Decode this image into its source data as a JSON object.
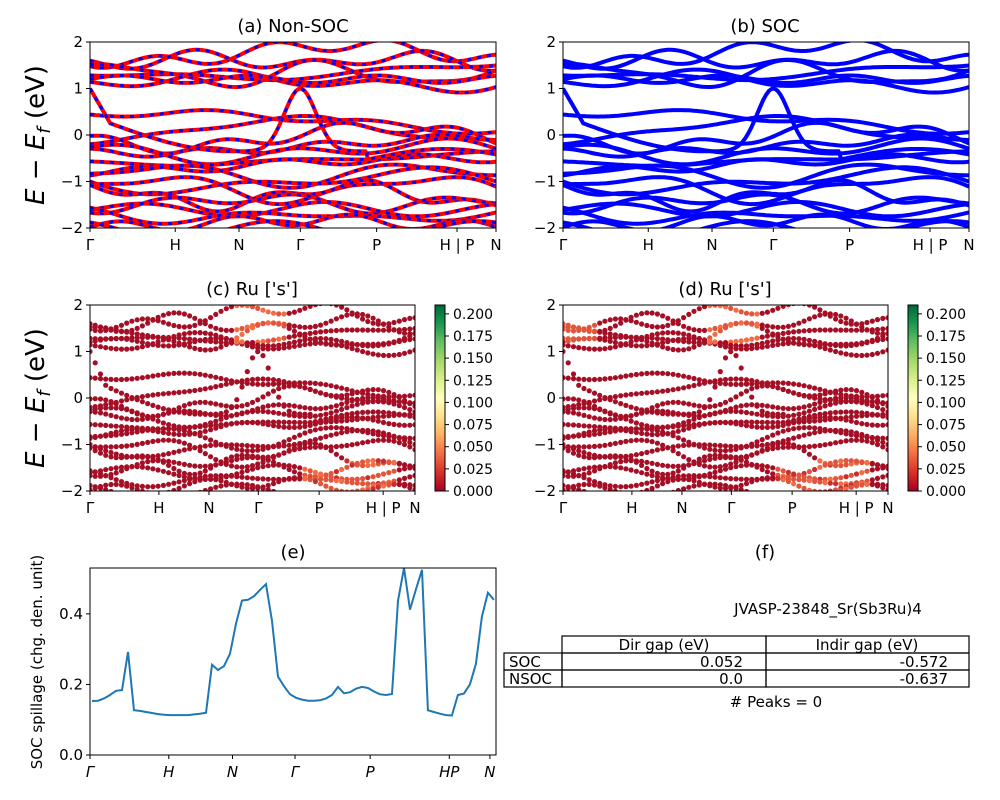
{
  "chart_data": [
    {
      "id": "a",
      "type": "line",
      "title": "(a) Non-SOC",
      "ylabel": "E − E_f (eV)",
      "ylim": [
        -2,
        2
      ],
      "yticks": [
        "2",
        "1",
        "0",
        "−1",
        "−2"
      ],
      "xticks": [
        "Γ",
        "H",
        "N",
        "Γ",
        "P",
        "H | P",
        "N"
      ],
      "series": [
        {
          "color": "#ff0000",
          "style": "solid"
        },
        {
          "color": "#0000ff",
          "style": "dashed"
        }
      ]
    },
    {
      "id": "b",
      "type": "line",
      "title": "(b) SOC",
      "ylim": [
        -2,
        2
      ],
      "yticks": [
        "2",
        "1",
        "0",
        "−1",
        "−2"
      ],
      "xticks": [
        "Γ",
        "H",
        "N",
        "Γ",
        "P",
        "H | P",
        "N"
      ],
      "series": [
        {
          "color": "#0000ff",
          "style": "solid"
        }
      ]
    },
    {
      "id": "c",
      "type": "scatter",
      "title": "(c)  Ru ['s']",
      "ylabel": "E − E_f (eV)",
      "ylim": [
        -2,
        2
      ],
      "yticks": [
        "2",
        "1",
        "0",
        "−1",
        "−2"
      ],
      "xticks": [
        "Γ",
        "H",
        "N",
        "Γ",
        "P",
        "H | P",
        "N"
      ],
      "colorbar": {
        "colormap": "RdYlGn",
        "ticks": [
          "0.200",
          "0.175",
          "0.150",
          "0.125",
          "0.100",
          "0.075",
          "0.050",
          "0.025",
          "0.000"
        ],
        "range": [
          0,
          0.21
        ]
      }
    },
    {
      "id": "d",
      "type": "scatter",
      "title": "(d) Ru ['s']",
      "ylim": [
        -2,
        2
      ],
      "yticks": [
        "2",
        "1",
        "0",
        "−1",
        "−2"
      ],
      "xticks": [
        "Γ",
        "H",
        "N",
        "Γ",
        "P",
        "H | P",
        "N"
      ],
      "colorbar": {
        "colormap": "RdYlGn",
        "ticks": [
          "0.200",
          "0.175",
          "0.150",
          "0.125",
          "0.100",
          "0.075",
          "0.050",
          "0.025",
          "0.000"
        ],
        "range": [
          0,
          0.21
        ]
      }
    },
    {
      "id": "e",
      "type": "line",
      "title": "(e)",
      "ylabel": "SOC spillage (chg. den. unit)",
      "ylim": [
        0,
        0.53
      ],
      "yticks": [
        "0.4",
        "0.2",
        "0.0"
      ],
      "xticks": [
        "Γ",
        "H",
        "N",
        "Γ",
        "P",
        "HP",
        "N"
      ],
      "x": [
        0,
        1,
        2,
        3,
        4,
        5,
        6,
        7,
        8,
        9,
        10,
        11,
        12,
        13,
        14,
        15,
        16,
        17,
        18,
        19,
        20,
        21,
        22,
        23,
        24,
        25,
        26,
        27,
        28,
        29,
        30,
        31,
        32,
        33,
        34,
        35,
        36,
        37,
        38,
        39,
        40,
        41,
        42,
        43,
        44,
        45,
        46,
        47,
        48,
        49,
        50,
        51,
        52,
        53,
        54,
        55,
        56,
        57,
        58,
        59,
        60,
        61,
        62,
        63,
        64,
        65,
        66,
        67
      ],
      "values": [
        0.153,
        0.154,
        0.16,
        0.17,
        0.182,
        0.184,
        0.292,
        0.127,
        0.125,
        0.122,
        0.119,
        0.116,
        0.114,
        0.113,
        0.113,
        0.113,
        0.113,
        0.115,
        0.117,
        0.12,
        0.256,
        0.241,
        0.252,
        0.287,
        0.372,
        0.438,
        0.44,
        0.45,
        0.468,
        0.484,
        0.38,
        0.222,
        0.195,
        0.172,
        0.162,
        0.157,
        0.154,
        0.154,
        0.155,
        0.16,
        0.17,
        0.193,
        0.175,
        0.178,
        0.188,
        0.193,
        0.19,
        0.18,
        0.172,
        0.17,
        0.173,
        0.437,
        0.53,
        0.412,
        0.47,
        0.525,
        0.127,
        0.122,
        0.117,
        0.113,
        0.112,
        0.17,
        0.174,
        0.2,
        0.258,
        0.392,
        0.46,
        0.44
      ],
      "color": "#1f77b4"
    },
    {
      "id": "f",
      "type": "table",
      "title": "(f)",
      "subtitle": "JVASP-23848_Sr(Sb3Ru)4",
      "columns": [
        "Dir gap (eV)",
        "Indir gap (eV)"
      ],
      "rows": [
        {
          "label": "SOC",
          "values": [
            "0.052",
            "-0.572"
          ]
        },
        {
          "label": "NSOC",
          "values": [
            "0.0",
            "-0.637"
          ]
        }
      ],
      "footer": "# Peaks = 0"
    }
  ]
}
